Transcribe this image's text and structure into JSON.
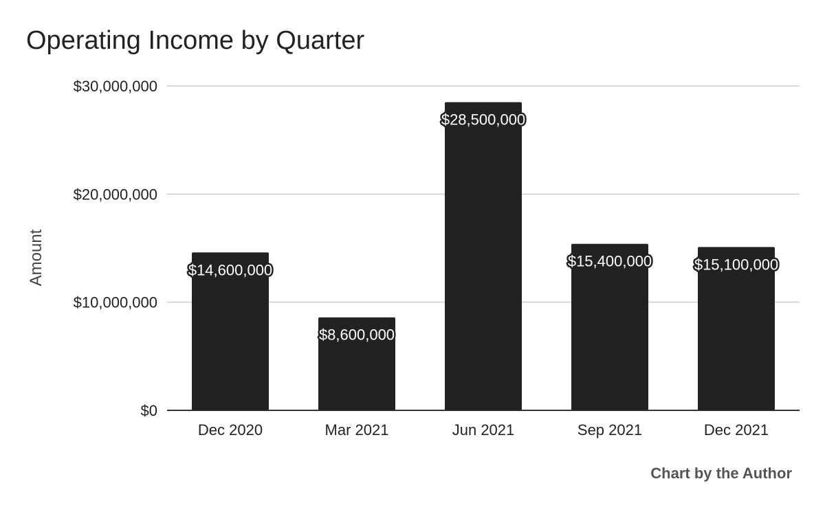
{
  "chart_data": {
    "type": "bar",
    "title": "Operating Income by Quarter",
    "ylabel": "Amount",
    "xlabel": "",
    "categories": [
      "Dec 2020",
      "Mar 2021",
      "Jun 2021",
      "Sep 2021",
      "Dec 2021"
    ],
    "values": [
      14600000,
      8600000,
      28500000,
      15400000,
      15100000
    ],
    "data_labels": [
      "$14,600,000",
      "$8,600,000",
      "$28,500,000",
      "$15,400,000",
      "$15,100,000"
    ],
    "ylim": [
      0,
      30000000
    ],
    "y_ticks": [
      0,
      10000000,
      20000000,
      30000000
    ],
    "y_tick_labels": [
      "$0",
      "$10,000,000",
      "$20,000,000",
      "$30,000,000"
    ],
    "grid": true,
    "legend": "none",
    "bar_color": "#222222",
    "grid_color": "#cccccc"
  },
  "footer": {
    "credit": "Chart by the Author"
  }
}
